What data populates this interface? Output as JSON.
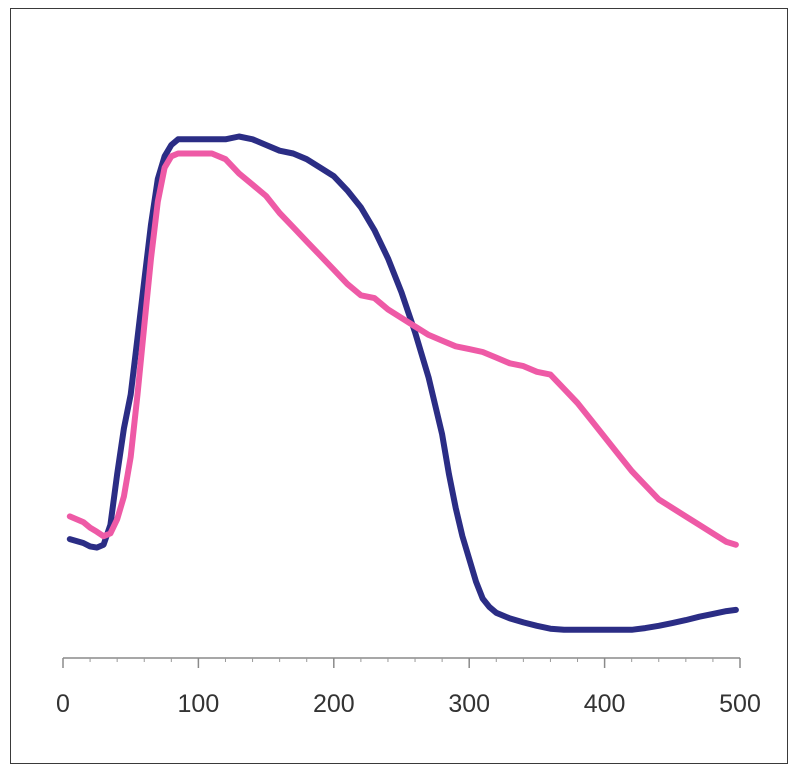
{
  "chart_data": {
    "type": "line",
    "x_ticks": [
      0,
      100,
      200,
      300,
      400,
      500
    ],
    "x_tick_labels": [
      "0",
      "100",
      "200",
      "300",
      "400",
      "500"
    ],
    "xlim": [
      0,
      500
    ],
    "ylim": [
      0,
      1
    ],
    "y_axis_visible": false,
    "grid": false,
    "legend": "none",
    "series": [
      {
        "color": "#2b2d85",
        "x": [
          5,
          15,
          20,
          25,
          30,
          35,
          40,
          45,
          50,
          55,
          60,
          65,
          70,
          75,
          80,
          85,
          90,
          100,
          110,
          120,
          130,
          140,
          150,
          160,
          170,
          180,
          190,
          200,
          210,
          220,
          230,
          240,
          250,
          260,
          270,
          280,
          285,
          290,
          295,
          300,
          305,
          310,
          315,
          320,
          330,
          340,
          350,
          360,
          370,
          380,
          390,
          400,
          410,
          420,
          430,
          440,
          450,
          460,
          470,
          480,
          490,
          497
        ],
        "y": [
          0.305,
          0.298,
          0.292,
          0.29,
          0.295,
          0.33,
          0.42,
          0.5,
          0.56,
          0.66,
          0.76,
          0.86,
          0.94,
          0.98,
          1.0,
          1.01,
          1.01,
          1.01,
          1.01,
          1.01,
          1.015,
          1.01,
          1.0,
          0.99,
          0.985,
          0.975,
          0.96,
          0.945,
          0.92,
          0.89,
          0.85,
          0.8,
          0.74,
          0.67,
          0.59,
          0.49,
          0.42,
          0.36,
          0.31,
          0.27,
          0.23,
          0.2,
          0.185,
          0.175,
          0.165,
          0.158,
          0.152,
          0.147,
          0.145,
          0.145,
          0.145,
          0.145,
          0.145,
          0.145,
          0.148,
          0.152,
          0.157,
          0.162,
          0.168,
          0.173,
          0.178,
          0.18
        ]
      },
      {
        "color": "#ee5aa6",
        "x": [
          5,
          15,
          20,
          25,
          30,
          35,
          40,
          45,
          50,
          55,
          60,
          65,
          70,
          75,
          80,
          85,
          90,
          100,
          110,
          120,
          130,
          140,
          150,
          160,
          170,
          180,
          190,
          200,
          210,
          220,
          230,
          240,
          250,
          260,
          270,
          280,
          290,
          300,
          310,
          320,
          330,
          340,
          350,
          360,
          370,
          380,
          390,
          400,
          410,
          420,
          430,
          440,
          450,
          460,
          470,
          480,
          490,
          497
        ],
        "y": [
          0.345,
          0.335,
          0.325,
          0.318,
          0.31,
          0.315,
          0.34,
          0.38,
          0.45,
          0.56,
          0.68,
          0.8,
          0.9,
          0.96,
          0.98,
          0.985,
          0.985,
          0.985,
          0.985,
          0.975,
          0.95,
          0.93,
          0.91,
          0.88,
          0.855,
          0.83,
          0.805,
          0.78,
          0.755,
          0.735,
          0.73,
          0.71,
          0.695,
          0.68,
          0.665,
          0.655,
          0.645,
          0.64,
          0.635,
          0.625,
          0.615,
          0.61,
          0.6,
          0.595,
          0.57,
          0.545,
          0.515,
          0.485,
          0.455,
          0.425,
          0.4,
          0.375,
          0.36,
          0.345,
          0.33,
          0.315,
          0.3,
          0.295
        ]
      }
    ]
  }
}
